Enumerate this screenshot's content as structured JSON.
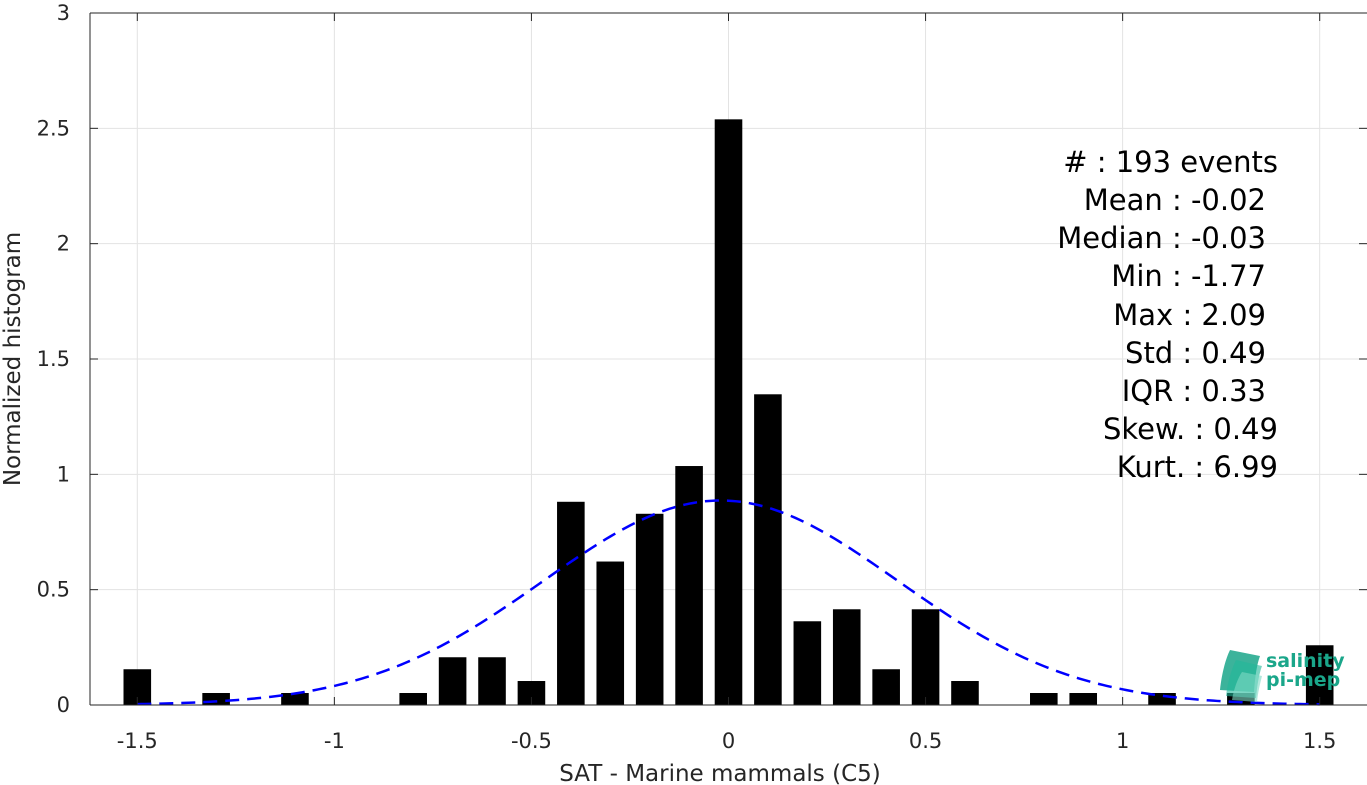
{
  "chart_data": {
    "type": "bar",
    "xlabel": "SAT - Marine mammals (C5)",
    "ylabel": "Normalized histogram",
    "xlim": [
      -1.62,
      1.62
    ],
    "ylim": [
      0,
      3
    ],
    "xticks": [
      -1.5,
      -1,
      -0.5,
      0,
      0.5,
      1,
      1.5
    ],
    "xtick_labels": [
      "-1.5",
      "-1",
      "-0.5",
      "0",
      "0.5",
      "1",
      "1.5"
    ],
    "yticks": [
      0,
      0.5,
      1,
      1.5,
      2,
      2.5,
      3
    ],
    "ytick_labels": [
      "0",
      "0.5",
      "1",
      "1.5",
      "2",
      "2.5",
      "3"
    ],
    "grid": true,
    "bin_width": 0.1,
    "bar_width": 0.07,
    "bar_color": "#000000",
    "bins": {
      "x": [
        -1.5,
        -1.3,
        -1.1,
        -0.8,
        -0.7,
        -0.6,
        -0.5,
        -0.4,
        -0.3,
        -0.2,
        -0.1,
        0.0,
        0.1,
        0.2,
        0.3,
        0.4,
        0.5,
        0.6,
        0.8,
        0.9,
        1.1,
        1.3,
        1.5
      ],
      "values": [
        0.155,
        0.052,
        0.052,
        0.052,
        0.207,
        0.207,
        0.104,
        0.881,
        0.622,
        0.829,
        1.036,
        2.539,
        1.347,
        0.363,
        0.415,
        0.155,
        0.415,
        0.104,
        0.052,
        0.052,
        0.052,
        0.052,
        0.259
      ]
    },
    "fit": {
      "type": "normal",
      "mean": -0.02,
      "std": 0.45,
      "color": "#0000ff",
      "style": "dashed"
    }
  },
  "stats": [
    "#  : 193 events",
    "Mean : -0.02",
    "Median : -0.03",
    "Min : -1.77",
    "Max : 2.09",
    "Std : 0.49",
    "IQR : 0.33",
    "Skew. : 0.49",
    "Kurt. : 6.99"
  ],
  "logo": {
    "line1": "salinity",
    "line2": "pi-mep",
    "color": "#1aa68a"
  }
}
